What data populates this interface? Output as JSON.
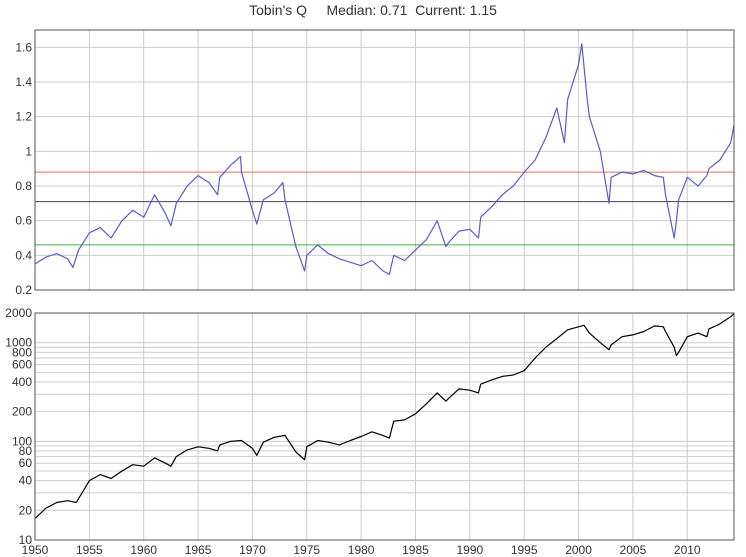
{
  "title": "Tobin's Q     Median: 0.71  Current: 1.15",
  "colors": {
    "q_line": "#5a5ad2",
    "upper_band": "#e07050",
    "median": "#404060",
    "lower_band": "#40b040",
    "price_line": "#000000",
    "grid": "#cccccc",
    "frame": "#555555"
  },
  "chart_data": [
    {
      "type": "line",
      "title": "Tobin's Q",
      "xlim": [
        1950,
        2014.3
      ],
      "ylim": [
        0.2,
        1.7
      ],
      "x_ticks": [
        1950,
        1955,
        1960,
        1965,
        1970,
        1975,
        1980,
        1985,
        1990,
        1995,
        2000,
        2005,
        2010
      ],
      "y_ticks": [
        0.2,
        0.4,
        0.6,
        0.8,
        1,
        1.2,
        1.4,
        1.6
      ],
      "y_tick_labels": [
        "0.2",
        "0.4",
        "0.6",
        "0.8",
        "1",
        "1.2",
        "1.4",
        "1.6"
      ],
      "grid": true,
      "series": [
        {
          "color": "#5a5ad2",
          "x": [
            1950,
            1951,
            1952,
            1953,
            1953.5,
            1954,
            1955,
            1956,
            1957,
            1958,
            1959,
            1960,
            1961,
            1962,
            1962.5,
            1963,
            1964,
            1965,
            1966,
            1966.8,
            1967,
            1968,
            1968.9,
            1969,
            1970,
            1970.4,
            1971,
            1972,
            1972.8,
            1973,
            1974,
            1974.8,
            1975,
            1976,
            1977,
            1978,
            1979,
            1980,
            1981,
            1982,
            1982.6,
            1983,
            1984,
            1985,
            1986,
            1987,
            1987.8,
            1988,
            1989,
            1990,
            1990.8,
            1991,
            1992,
            1993,
            1994,
            1995,
            1996,
            1997,
            1998,
            1998.7,
            1999,
            2000,
            2000.3,
            2000.8,
            2001,
            2002,
            2002.8,
            2003,
            2004,
            2005,
            2006,
            2007,
            2007.8,
            2008,
            2008.8,
            2009,
            2009.2,
            2010,
            2011,
            2011.8,
            2012,
            2013,
            2014,
            2014.3
          ],
          "y": [
            0.35,
            0.39,
            0.41,
            0.38,
            0.33,
            0.43,
            0.53,
            0.56,
            0.5,
            0.6,
            0.66,
            0.62,
            0.75,
            0.64,
            0.57,
            0.7,
            0.8,
            0.86,
            0.82,
            0.75,
            0.85,
            0.92,
            0.97,
            0.88,
            0.66,
            0.58,
            0.72,
            0.76,
            0.82,
            0.72,
            0.45,
            0.31,
            0.4,
            0.46,
            0.41,
            0.38,
            0.36,
            0.34,
            0.37,
            0.31,
            0.29,
            0.4,
            0.37,
            0.43,
            0.49,
            0.6,
            0.45,
            0.47,
            0.54,
            0.55,
            0.5,
            0.62,
            0.68,
            0.75,
            0.8,
            0.88,
            0.95,
            1.08,
            1.25,
            1.05,
            1.3,
            1.5,
            1.62,
            1.3,
            1.2,
            1.0,
            0.7,
            0.85,
            0.88,
            0.87,
            0.89,
            0.86,
            0.85,
            0.75,
            0.5,
            0.6,
            0.72,
            0.85,
            0.8,
            0.86,
            0.9,
            0.95,
            1.05,
            1.15
          ]
        }
      ],
      "reference_lines": [
        {
          "y": 0.88,
          "color": "#e07050"
        },
        {
          "y": 0.71,
          "color": "#404060"
        },
        {
          "y": 0.46,
          "color": "#40b040"
        }
      ]
    },
    {
      "type": "line",
      "log_scale_y": true,
      "xlim": [
        1950,
        2014.3
      ],
      "ylim": [
        10,
        2000
      ],
      "x_ticks": [
        1950,
        1955,
        1960,
        1965,
        1970,
        1975,
        1980,
        1985,
        1990,
        1995,
        2000,
        2005,
        2010
      ],
      "y_ticks": [
        10,
        20,
        40,
        60,
        80,
        100,
        200,
        400,
        600,
        800,
        1000,
        2000
      ],
      "y_tick_labels": [
        "10",
        "20",
        "40",
        "60",
        "80",
        "100",
        "200",
        "400",
        "600",
        "800",
        "1000",
        "2000"
      ],
      "minor_grid_y": [
        30,
        50,
        70,
        90,
        300,
        500,
        700,
        900
      ],
      "grid": true,
      "series": [
        {
          "color": "#000000",
          "x": [
            1950,
            1951,
            1952,
            1953,
            1953.8,
            1955,
            1956,
            1957,
            1958,
            1959,
            1960,
            1961,
            1962,
            1962.5,
            1963,
            1964,
            1965,
            1966,
            1966.8,
            1967,
            1968,
            1969,
            1970,
            1970.4,
            1971,
            1972,
            1973,
            1974,
            1974.8,
            1975,
            1976,
            1977,
            1978,
            1979,
            1980,
            1981,
            1982,
            1982.6,
            1983,
            1984,
            1985,
            1986,
            1987,
            1987.8,
            1988,
            1989,
            1990,
            1990.8,
            1991,
            1992,
            1993,
            1994,
            1995,
            1996,
            1997,
            1998,
            1999,
            2000,
            2000.5,
            2001,
            2002,
            2002.8,
            2003,
            2004,
            2005,
            2006,
            2007,
            2007.8,
            2008,
            2008.8,
            2009,
            2009.2,
            2010,
            2011,
            2011.8,
            2012,
            2013,
            2014,
            2014.3
          ],
          "y": [
            16.5,
            21,
            24,
            25,
            24,
            40,
            46,
            42,
            50,
            58,
            56,
            68,
            60,
            56,
            70,
            82,
            88,
            85,
            80,
            92,
            100,
            102,
            85,
            72,
            98,
            110,
            115,
            78,
            65,
            88,
            102,
            98,
            92,
            102,
            112,
            125,
            115,
            108,
            160,
            165,
            190,
            240,
            310,
            255,
            270,
            340,
            330,
            310,
            380,
            420,
            455,
            470,
            520,
            700,
            900,
            1100,
            1350,
            1450,
            1500,
            1250,
            1000,
            850,
            950,
            1150,
            1200,
            1300,
            1480,
            1450,
            1300,
            900,
            740,
            800,
            1150,
            1250,
            1150,
            1380,
            1550,
            1830,
            1970
          ]
        }
      ]
    }
  ]
}
